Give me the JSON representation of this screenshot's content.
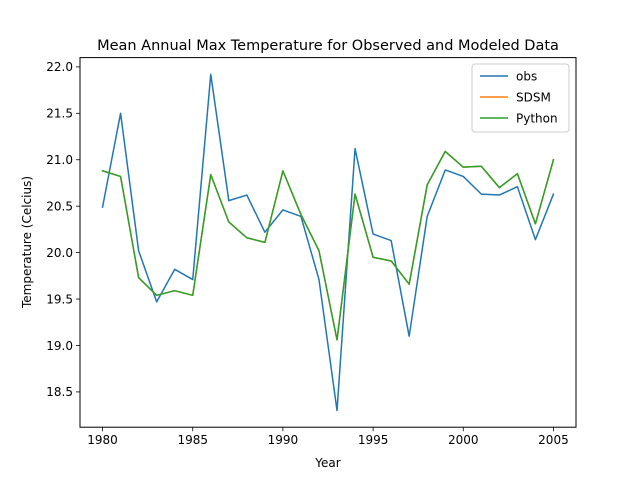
{
  "chart_data": {
    "type": "line",
    "title": "Mean Annual Max Temperature for Observed and Modeled Data",
    "xlabel": "Year",
    "ylabel": "Temperature (Celcius)",
    "xlim": [
      1978.75,
      2006.25
    ],
    "ylim": [
      18.12,
      22.1
    ],
    "xticks": [
      1980,
      1985,
      1990,
      1995,
      2000,
      2005
    ],
    "yticks": [
      18.5,
      19.0,
      19.5,
      20.0,
      20.5,
      21.0,
      21.5,
      22.0
    ],
    "ytick_labels": [
      "18.5",
      "19.0",
      "19.5",
      "20.0",
      "20.5",
      "21.0",
      "21.5",
      "22.0"
    ],
    "grid": false,
    "legend_position": "top-right",
    "x": [
      1980,
      1981,
      1982,
      1983,
      1984,
      1985,
      1986,
      1987,
      1988,
      1989,
      1990,
      1991,
      1992,
      1993,
      1994,
      1995,
      1996,
      1997,
      1998,
      1999,
      2000,
      2001,
      2002,
      2003,
      2004,
      2005
    ],
    "series": [
      {
        "name": "obs",
        "color": "#1f77b4",
        "values": [
          20.49,
          21.5,
          20.02,
          19.47,
          19.82,
          19.71,
          21.92,
          20.56,
          20.62,
          20.22,
          20.46,
          20.39,
          19.71,
          18.3,
          21.12,
          20.2,
          20.13,
          19.1,
          20.39,
          20.89,
          20.82,
          20.63,
          20.62,
          20.71,
          20.14,
          20.63
        ]
      },
      {
        "name": "SDSM",
        "color": "#ff7f0e",
        "values": [
          20.88,
          20.82,
          19.73,
          19.54,
          19.59,
          19.54,
          20.84,
          20.33,
          20.16,
          20.11,
          20.88,
          20.41,
          20.02,
          19.06,
          20.63,
          19.95,
          19.91,
          19.66,
          20.73,
          21.09,
          20.92,
          20.93,
          20.7,
          20.85,
          20.31,
          21.0
        ]
      },
      {
        "name": "Python",
        "color": "#2ca02c",
        "values": [
          20.88,
          20.82,
          19.73,
          19.54,
          19.59,
          19.54,
          20.84,
          20.33,
          20.16,
          20.11,
          20.88,
          20.41,
          20.02,
          19.06,
          20.63,
          19.95,
          19.91,
          19.66,
          20.73,
          21.09,
          20.92,
          20.93,
          20.7,
          20.85,
          20.31,
          21.0
        ]
      }
    ]
  }
}
